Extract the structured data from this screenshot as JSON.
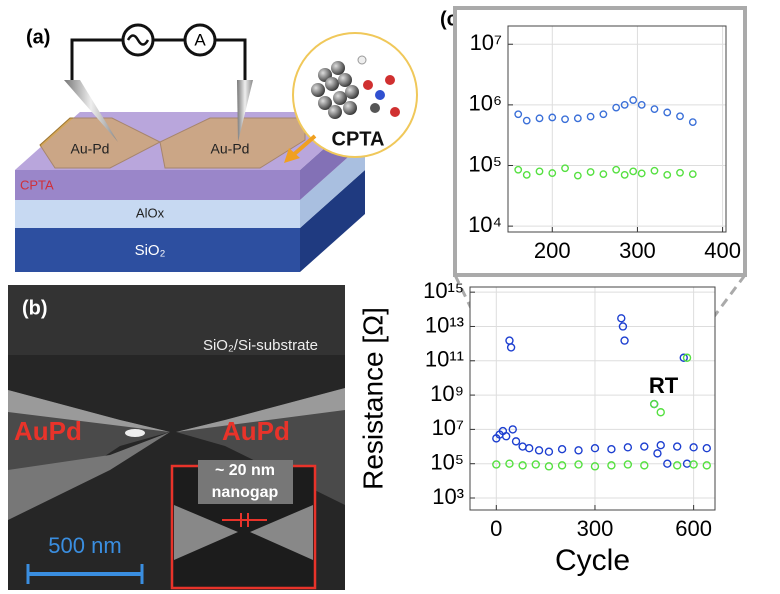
{
  "figure": {
    "panel_labels": [
      "(a)",
      "(b)",
      "(c)"
    ],
    "diagram": {
      "electrodes": [
        "Au-Pd",
        "Au-Pd"
      ],
      "layers": [
        "CPTA",
        "AlOx",
        "SiO₂"
      ],
      "molecule_label": "CPTA"
    },
    "sem": {
      "substrate": "SiO₂/Si-substrate",
      "electrodes": [
        "AuPd",
        "AuPd"
      ],
      "gap": [
        "~ 20 nm",
        "nanogap"
      ],
      "scale_bar": "500 nm"
    }
  },
  "chart_data": [
    {
      "type": "scatter",
      "yscale": "log",
      "grid": true,
      "xlim": [
        148,
        404
      ],
      "ylim": [
        8000,
        20000000
      ],
      "xticks": [
        200,
        300,
        400
      ],
      "yticks": [
        {
          "value": 10000,
          "label": "10⁴"
        },
        {
          "value": 100000,
          "label": "10⁵"
        },
        {
          "value": 1000000,
          "label": "10⁶"
        },
        {
          "value": 10000000,
          "label": "10⁷"
        }
      ],
      "series": [
        {
          "color": "#3a6fd8",
          "x": [
            160,
            170,
            185,
            200,
            215,
            230,
            245,
            260,
            275,
            285,
            295,
            305,
            320,
            335,
            350,
            365
          ],
          "values": [
            700000,
            550000,
            600000,
            620000,
            580000,
            600000,
            640000,
            700000,
            900000,
            1000000,
            1200000,
            1000000,
            850000,
            750000,
            650000,
            520000
          ]
        },
        {
          "color": "#55e040",
          "x": [
            160,
            170,
            185,
            200,
            215,
            230,
            245,
            260,
            275,
            285,
            295,
            305,
            320,
            335,
            350,
            365
          ],
          "values": [
            85000,
            70000,
            80000,
            75000,
            90000,
            68000,
            78000,
            72000,
            85000,
            70000,
            80000,
            74000,
            82000,
            70000,
            76000,
            72000
          ]
        }
      ]
    },
    {
      "type": "scatter",
      "yscale": "log",
      "grid": true,
      "xlabel": "Cycle",
      "ylabel": "Resistance [Ω]",
      "annotation": "RT",
      "xlim": [
        -80,
        665
      ],
      "ylim": [
        200,
        2000000000000000
      ],
      "xticks": [
        0,
        300,
        600
      ],
      "yticks": [
        {
          "value": 1000,
          "label": "10³"
        },
        {
          "value": 100000,
          "label": "10⁵"
        },
        {
          "value": 10000000,
          "label": "10⁷"
        },
        {
          "value": 1000000000,
          "label": "10⁹"
        },
        {
          "value": 100000000000,
          "label": "10¹¹"
        },
        {
          "value": 10000000000000,
          "label": "10¹³"
        },
        {
          "value": 1000000000000000,
          "label": "10¹⁵"
        }
      ],
      "series": [
        {
          "color": "#1d3fd0",
          "x": [
            0,
            10,
            20,
            30,
            40,
            45,
            50,
            60,
            80,
            100,
            130,
            160,
            200,
            250,
            300,
            350,
            380,
            385,
            390,
            400,
            450,
            480,
            490,
            500,
            520,
            550,
            570,
            580,
            600,
            640
          ],
          "values": [
            3000000,
            5000000,
            8000000,
            4000000,
            1500000000000,
            600000000000,
            10000000,
            2000000,
            1000000,
            800000,
            600000,
            500000,
            700000,
            600000,
            800000,
            700000,
            30000000000000,
            10000000000000,
            1500000000000,
            900000,
            1000000,
            300000000,
            400000,
            1200000,
            100000,
            1000000,
            150000000000,
            100000,
            900000,
            800000
          ]
        },
        {
          "color": "#55e040",
          "x": [
            0,
            40,
            80,
            120,
            160,
            200,
            250,
            300,
            350,
            400,
            450,
            480,
            500,
            550,
            580,
            600,
            640
          ],
          "values": [
            90000,
            100000,
            80000,
            90000,
            70000,
            80000,
            90000,
            70000,
            80000,
            90000,
            80000,
            300000000,
            100000000,
            80000,
            150000000000,
            90000,
            80000
          ]
        }
      ]
    }
  ]
}
